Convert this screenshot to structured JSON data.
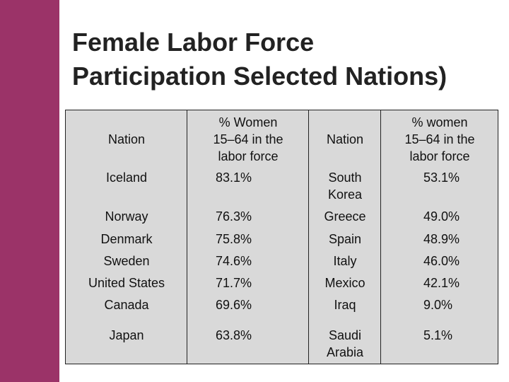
{
  "slide": {
    "accent_color": "#9b3368",
    "title_line1": "Female Labor Force",
    "title_line2": "Participation Selected Nations)"
  },
  "table": {
    "headers": [
      "Nation",
      "% Women\n15–64 in the\nlabor force",
      "Nation",
      "% women\n15–64 in the\nlabor force"
    ],
    "rows": [
      [
        "Iceland",
        "83.1%",
        "South\nKorea",
        "53.1%"
      ],
      [
        "Norway",
        "76.3%",
        "Greece",
        "49.0%"
      ],
      [
        "Denmark",
        "75.8%",
        "Spain",
        "48.9%"
      ],
      [
        "Sweden",
        "74.6%",
        "Italy",
        "46.0%"
      ],
      [
        "United States",
        "71.7%",
        "Mexico",
        "42.1%"
      ],
      [
        "Canada",
        "69.6%",
        "Iraq",
        "9.0%"
      ],
      [
        "Japan",
        "63.8%",
        "Saudi\nArabia",
        "5.1%"
      ]
    ]
  }
}
